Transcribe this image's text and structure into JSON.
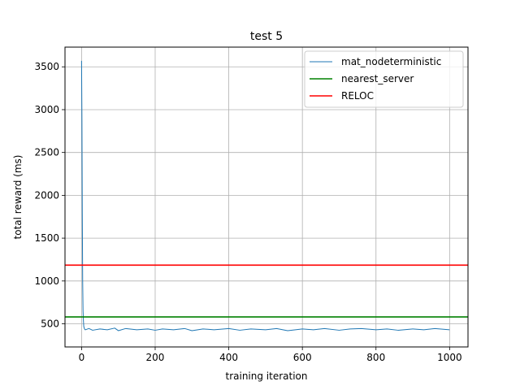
{
  "chart_data": {
    "type": "line",
    "title": "test 5",
    "xlabel": "training iteration",
    "ylabel": "total reward (ms)",
    "xlim": [
      -45,
      1050
    ],
    "ylim": [
      230,
      3730
    ],
    "xticks": [
      0,
      200,
      400,
      600,
      800,
      1000
    ],
    "yticks": [
      500,
      1000,
      1500,
      2000,
      2500,
      3000,
      3500
    ],
    "grid": true,
    "legend_position": "top-right",
    "series": [
      {
        "name": "mat_nodeterministic",
        "color": "#1f77b4",
        "kind": "line",
        "points": [
          [
            0,
            3570
          ],
          [
            1,
            2900
          ],
          [
            2,
            1800
          ],
          [
            3,
            1000
          ],
          [
            4,
            650
          ],
          [
            5,
            540
          ],
          [
            6,
            470
          ],
          [
            8,
            440
          ],
          [
            10,
            430
          ],
          [
            20,
            445
          ],
          [
            30,
            425
          ],
          [
            50,
            440
          ],
          [
            70,
            430
          ],
          [
            90,
            450
          ],
          [
            100,
            420
          ],
          [
            120,
            445
          ],
          [
            150,
            430
          ],
          [
            180,
            440
          ],
          [
            200,
            425
          ],
          [
            220,
            440
          ],
          [
            250,
            430
          ],
          [
            280,
            445
          ],
          [
            300,
            420
          ],
          [
            330,
            440
          ],
          [
            360,
            430
          ],
          [
            400,
            445
          ],
          [
            430,
            425
          ],
          [
            460,
            440
          ],
          [
            500,
            430
          ],
          [
            530,
            445
          ],
          [
            560,
            420
          ],
          [
            600,
            440
          ],
          [
            630,
            430
          ],
          [
            660,
            445
          ],
          [
            700,
            425
          ],
          [
            730,
            440
          ],
          [
            760,
            445
          ],
          [
            800,
            430
          ],
          [
            830,
            440
          ],
          [
            860,
            425
          ],
          [
            900,
            440
          ],
          [
            930,
            430
          ],
          [
            960,
            445
          ],
          [
            1000,
            430
          ]
        ]
      },
      {
        "name": "nearest_server",
        "color": "#008000",
        "kind": "hline",
        "value": 580
      },
      {
        "name": "RELOC",
        "color": "#ff0000",
        "kind": "hline",
        "value": 1185
      }
    ]
  }
}
